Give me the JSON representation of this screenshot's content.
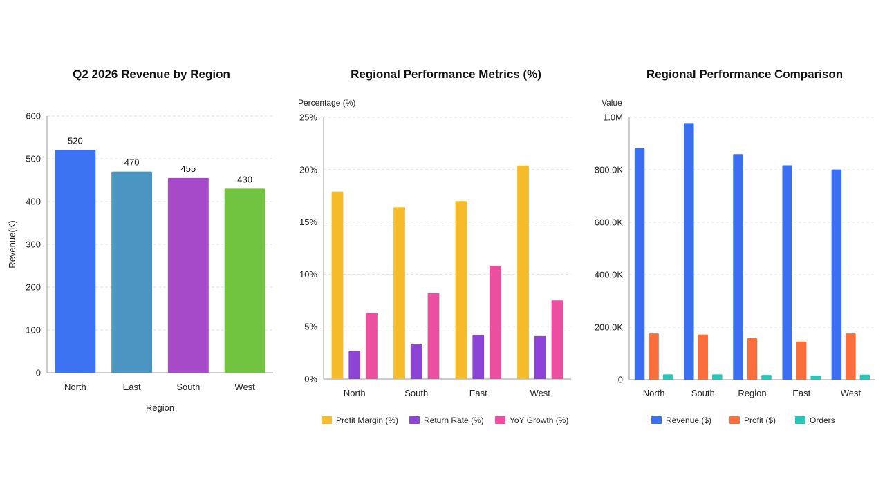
{
  "chart_data": [
    {
      "type": "bar",
      "title": "Q2 2026 Revenue by Region",
      "xlabel": "Region",
      "ylabel": "Revenue(K)",
      "categories": [
        "North",
        "East",
        "South",
        "West"
      ],
      "values": [
        520,
        470,
        455,
        430
      ],
      "bar_colors": [
        "#3b73f2",
        "#4a95c2",
        "#a64ac9",
        "#70c43f"
      ],
      "ylim": [
        0,
        600
      ],
      "yticks": [
        0,
        100,
        200,
        300,
        400,
        500,
        600
      ],
      "ytick_labels": [
        "0",
        "100",
        "200",
        "300",
        "400",
        "500",
        "600"
      ],
      "data_labels": [
        "520",
        "470",
        "455",
        "430"
      ],
      "grid": true
    },
    {
      "type": "bar",
      "title": "Regional Performance Metrics (%)",
      "ylabel": "Percentage (%)",
      "categories": [
        "North",
        "South",
        "East",
        "West"
      ],
      "series": [
        {
          "name": "Profit Margin (%)",
          "color": "#f5bb28",
          "values": [
            17.9,
            16.4,
            17.0,
            20.4
          ]
        },
        {
          "name": "Return Rate (%)",
          "color": "#8b44d6",
          "values": [
            2.7,
            3.3,
            4.2,
            4.1
          ]
        },
        {
          "name": "YoY Growth (%)",
          "color": "#ec4f9f",
          "values": [
            6.3,
            8.2,
            10.8,
            7.5
          ]
        }
      ],
      "ylim": [
        0,
        25
      ],
      "yticks": [
        0,
        5,
        10,
        15,
        20,
        25
      ],
      "ytick_labels": [
        "0%",
        "5%",
        "10%",
        "15%",
        "20%",
        "25%"
      ],
      "legend": "bottom",
      "grid": true
    },
    {
      "type": "bar",
      "title": "Regional Performance Comparison",
      "ylabel": "Value",
      "categories": [
        "North",
        "South",
        "Region",
        "East",
        "West"
      ],
      "series": [
        {
          "name": "Revenue ($)",
          "color": "#3b6ff2",
          "values": [
            882000,
            978000,
            860000,
            817000,
            801000
          ]
        },
        {
          "name": "Profit ($)",
          "color": "#fb6e3b",
          "values": [
            176000,
            172000,
            158000,
            145000,
            176000
          ]
        },
        {
          "name": "Orders",
          "color": "#27c4b8",
          "values": [
            20000,
            20000,
            18000,
            16000,
            19000
          ]
        }
      ],
      "ylim": [
        0,
        1000000
      ],
      "yticks": [
        0,
        200000,
        400000,
        600000,
        800000,
        1000000
      ],
      "ytick_labels": [
        "0",
        "200.0K",
        "400.0K",
        "600.0K",
        "800.0K",
        "1.0M"
      ],
      "legend": "bottom",
      "grid": true
    }
  ]
}
